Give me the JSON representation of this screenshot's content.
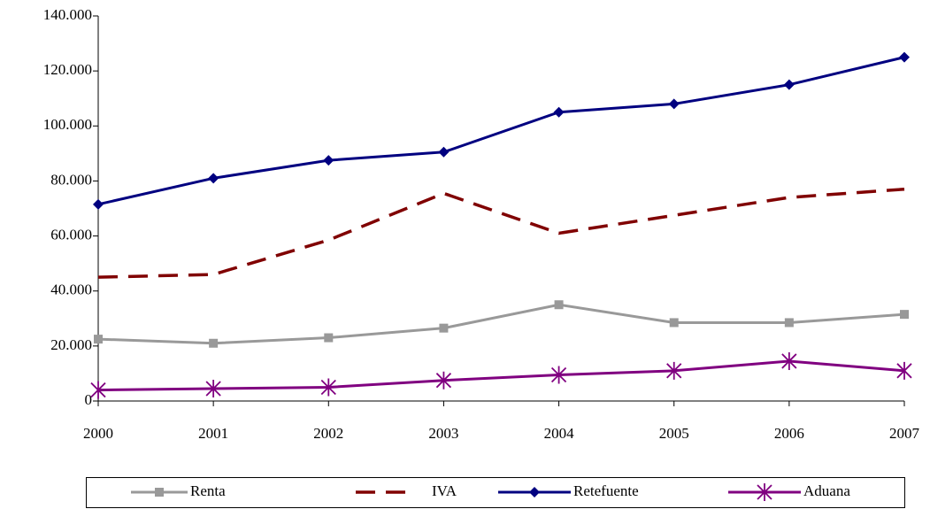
{
  "chart_data": {
    "type": "line",
    "x": [
      2000,
      2001,
      2002,
      2003,
      2004,
      2005,
      2006,
      2007
    ],
    "xlim": [
      2000,
      2007
    ],
    "xticks": [
      2000,
      2001,
      2002,
      2003,
      2004,
      2005,
      2006,
      2007
    ],
    "ylim": [
      0,
      140000
    ],
    "yticks": [
      0,
      {
        "value": 20000,
        "label": "20.000"
      },
      {
        "value": 40000,
        "label": "40.000"
      },
      {
        "value": 60000,
        "label": "60.000"
      },
      {
        "value": 80000,
        "label": "80.000"
      },
      {
        "value": 100000,
        "label": "100.000"
      },
      {
        "value": 120000,
        "label": "120.000"
      },
      {
        "value": 140000,
        "label": "140.000"
      }
    ],
    "grid": false,
    "legend": "bottom",
    "series": [
      {
        "name": "Renta",
        "color": "#999999",
        "marker": "square",
        "line_style": "solid",
        "values": [
          22500,
          21000,
          23000,
          26500,
          35000,
          28500,
          28500,
          31500
        ]
      },
      {
        "name": "IVA",
        "color": "#800000",
        "marker": "none",
        "line_style": "dashed",
        "values": [
          45000,
          46000,
          58500,
          75500,
          61000,
          67500,
          74000,
          77000
        ]
      },
      {
        "name": "Retefuente",
        "color": "#000080",
        "marker": "diamond",
        "line_style": "solid",
        "values": [
          71500,
          81000,
          87500,
          90500,
          105000,
          108000,
          115000,
          125000
        ]
      },
      {
        "name": "Aduana",
        "color": "#800080",
        "marker": "asterisk",
        "line_style": "solid",
        "values": [
          4000,
          4500,
          5000,
          7500,
          9500,
          11000,
          14500,
          11000
        ]
      }
    ]
  }
}
